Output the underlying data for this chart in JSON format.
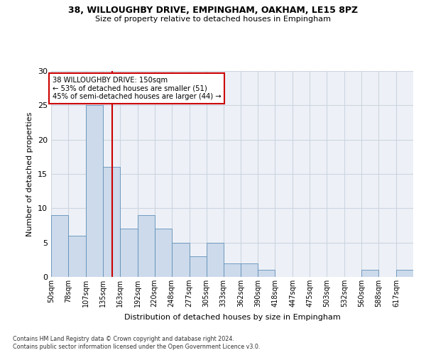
{
  "title1": "38, WILLOUGHBY DRIVE, EMPINGHAM, OAKHAM, LE15 8PZ",
  "title2": "Size of property relative to detached houses in Empingham",
  "xlabel": "Distribution of detached houses by size in Empingham",
  "ylabel": "Number of detached properties",
  "annotation_line1": "38 WILLOUGHBY DRIVE: 150sqm",
  "annotation_line2": "← 53% of detached houses are smaller (51)",
  "annotation_line3": "45% of semi-detached houses are larger (44) →",
  "bar_color": "#ccdaeb",
  "bar_edge_color": "#6090b8",
  "vline_color": "#cc0000",
  "vline_x": 150,
  "annotation_box_edge_color": "#cc0000",
  "categories": [
    "50sqm",
    "78sqm",
    "107sqm",
    "135sqm",
    "163sqm",
    "192sqm",
    "220sqm",
    "248sqm",
    "277sqm",
    "305sqm",
    "333sqm",
    "362sqm",
    "390sqm",
    "418sqm",
    "447sqm",
    "475sqm",
    "503sqm",
    "532sqm",
    "560sqm",
    "588sqm",
    "617sqm"
  ],
  "bin_edges": [
    50,
    78,
    107,
    135,
    163,
    192,
    220,
    248,
    277,
    305,
    333,
    362,
    390,
    418,
    447,
    475,
    503,
    532,
    560,
    588,
    617,
    645
  ],
  "values": [
    9,
    6,
    25,
    16,
    7,
    9,
    7,
    5,
    3,
    5,
    2,
    2,
    1,
    0,
    0,
    0,
    0,
    0,
    1,
    0,
    1
  ],
  "ylim": [
    0,
    30
  ],
  "yticks": [
    0,
    5,
    10,
    15,
    20,
    25,
    30
  ],
  "grid_color": "#cdd5e0",
  "bg_color": "#edf1f7",
  "footer1": "Contains HM Land Registry data © Crown copyright and database right 2024.",
  "footer2": "Contains public sector information licensed under the Open Government Licence v3.0."
}
